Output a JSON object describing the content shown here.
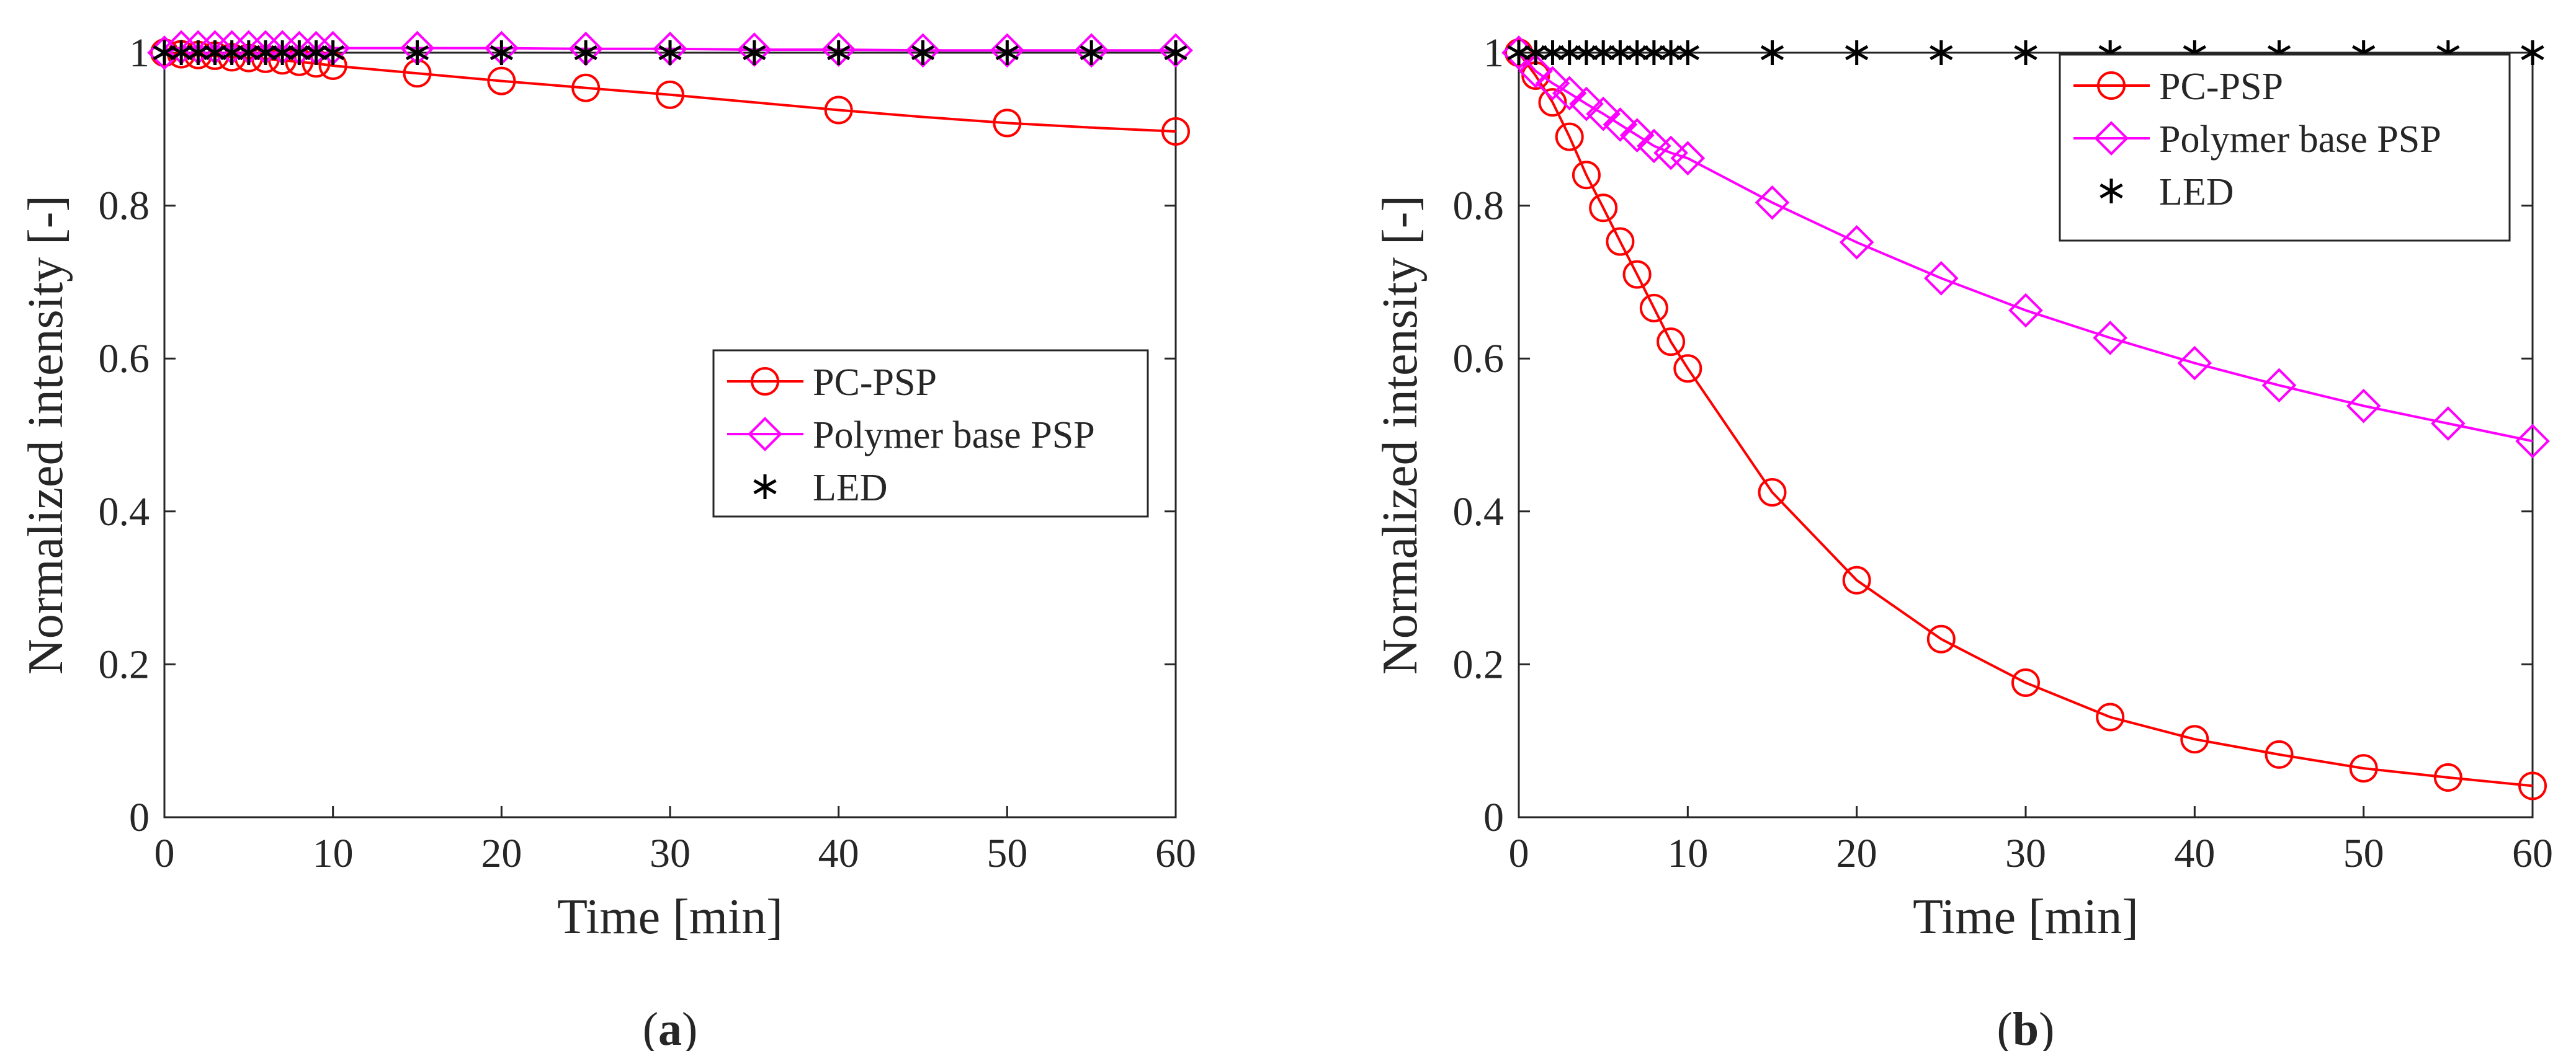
{
  "chart_data": [
    {
      "id": "a",
      "panel_label": {
        "open": "(",
        "letter": "a",
        "close": ")"
      },
      "type": "line",
      "xlabel": "Time [min]",
      "ylabel": "Normalized intensity [-]",
      "xlim": [
        0,
        60
      ],
      "ylim": [
        0,
        1
      ],
      "xticks": [
        0,
        10,
        20,
        30,
        40,
        50,
        60
      ],
      "xtick_labels": [
        "0",
        "10",
        "20",
        "30",
        "40",
        "50",
        "60"
      ],
      "yticks": [
        0,
        0.2,
        0.4,
        0.6,
        0.8,
        1
      ],
      "ytick_labels": [
        "0",
        "0.2",
        "0.4",
        "0.6",
        "0.8",
        "1"
      ],
      "grid": false,
      "legend_position": "center-right",
      "x": [
        0,
        1,
        2,
        3,
        4,
        5,
        6,
        7,
        8,
        9,
        10,
        15,
        20,
        25,
        30,
        35,
        40,
        45,
        50,
        55,
        60
      ],
      "series": [
        {
          "name": "PC-PSP",
          "marker": "circle",
          "color": "#ff0000",
          "show_markers_at": [
            0,
            1,
            2,
            3,
            4,
            5,
            6,
            7,
            8,
            9,
            10,
            15,
            20,
            25,
            30,
            40,
            50,
            60
          ],
          "values": [
            1.0,
            0.998,
            0.997,
            0.996,
            0.994,
            0.993,
            0.992,
            0.99,
            0.988,
            0.986,
            0.983,
            0.973,
            0.963,
            0.954,
            0.945,
            0.935,
            0.925,
            0.916,
            0.908,
            0.902,
            0.897
          ]
        },
        {
          "name": "Polymer base PSP",
          "marker": "diamond",
          "color": "#ff00ff",
          "values": [
            1.0,
            1.007,
            1.007,
            1.007,
            1.007,
            1.007,
            1.007,
            1.007,
            1.006,
            1.006,
            1.006,
            1.006,
            1.006,
            1.005,
            1.005,
            1.004,
            1.004,
            1.003,
            1.003,
            1.003,
            1.003
          ]
        },
        {
          "name": "LED",
          "marker": "asterisk",
          "color": "#000000",
          "values": [
            1.0,
            1.0,
            1.0,
            1.0,
            1.0,
            1.0,
            1.0,
            1.0,
            1.0,
            1.0,
            1.0,
            1.0,
            1.0,
            1.0,
            1.0,
            1.0,
            1.0,
            1.0,
            1.0,
            1.0,
            1.0
          ]
        }
      ]
    },
    {
      "id": "b",
      "panel_label": {
        "open": "(",
        "letter": "b",
        "close": ")"
      },
      "type": "line",
      "xlabel": "Time [min]",
      "ylabel": "Normalized intensity [-]",
      "xlim": [
        0,
        60
      ],
      "ylim": [
        0,
        1
      ],
      "xticks": [
        0,
        10,
        20,
        30,
        40,
        50,
        60
      ],
      "xtick_labels": [
        "0",
        "10",
        "20",
        "30",
        "40",
        "50",
        "60"
      ],
      "yticks": [
        0,
        0.2,
        0.4,
        0.6,
        0.8,
        1
      ],
      "ytick_labels": [
        "0",
        "0.2",
        "0.4",
        "0.6",
        "0.8",
        "1"
      ],
      "grid": false,
      "legend_position": "top-right",
      "x": [
        0,
        1,
        2,
        3,
        4,
        5,
        6,
        7,
        8,
        9,
        10,
        15,
        20,
        25,
        30,
        35,
        40,
        45,
        50,
        55,
        60
      ],
      "series": [
        {
          "name": "PC-PSP",
          "marker": "circle",
          "color": "#ff0000",
          "values": [
            1.0,
            0.97,
            0.935,
            0.89,
            0.84,
            0.797,
            0.753,
            0.71,
            0.666,
            0.622,
            0.587,
            0.425,
            0.31,
            0.233,
            0.176,
            0.131,
            0.102,
            0.082,
            0.064,
            0.052,
            0.041
          ]
        },
        {
          "name": "Polymer base PSP",
          "marker": "diamond",
          "color": "#ff00ff",
          "values": [
            1.0,
            0.976,
            0.96,
            0.947,
            0.933,
            0.92,
            0.906,
            0.892,
            0.878,
            0.869,
            0.862,
            0.804,
            0.752,
            0.705,
            0.663,
            0.627,
            0.594,
            0.565,
            0.538,
            0.515,
            0.492
          ]
        },
        {
          "name": "LED",
          "marker": "asterisk",
          "color": "#000000",
          "values": [
            1.0,
            1.0,
            1.0,
            1.0,
            1.0,
            1.0,
            1.0,
            1.0,
            1.0,
            1.0,
            1.0,
            1.0,
            1.0,
            1.0,
            1.0,
            1.0,
            1.0,
            1.0,
            1.0,
            1.0,
            1.0
          ]
        }
      ]
    }
  ]
}
